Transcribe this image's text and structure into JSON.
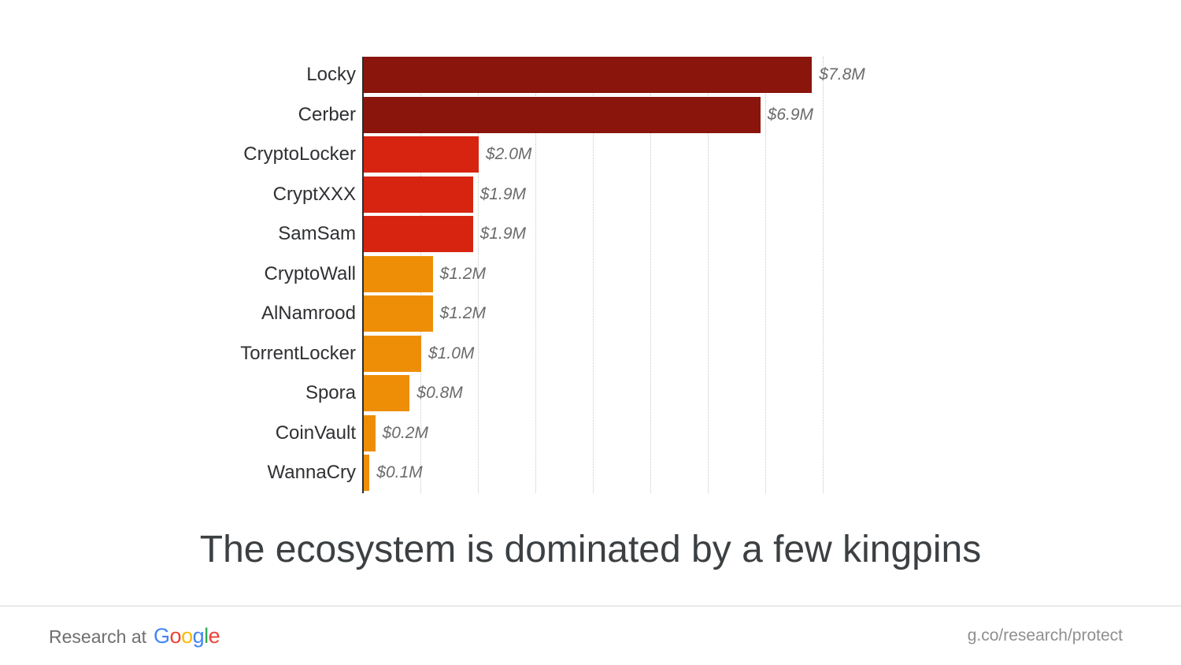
{
  "title": {
    "text": "The ecosystem is dominated by a few kingpins"
  },
  "chart_data": {
    "type": "bar",
    "orientation": "horizontal",
    "title": "The ecosystem is dominated by a few kingpins",
    "unit": "USD millions (ransomware revenue)",
    "xlim": [
      0,
      8
    ],
    "gridlines": {
      "interval": 1,
      "count": 8,
      "style": "dotted"
    },
    "categories": [
      "Locky",
      "Cerber",
      "CryptoLocker",
      "CryptXXX",
      "SamSam",
      "CryptoWall",
      "AlNamrood",
      "TorrentLocker",
      "Spora",
      "CoinVault",
      "WannaCry"
    ],
    "values": [
      7.8,
      6.9,
      2.0,
      1.9,
      1.9,
      1.2,
      1.2,
      1.0,
      0.8,
      0.2,
      0.1
    ],
    "bars": [
      {
        "label": "Locky",
        "value": 7.8,
        "value_label": "$7.8M",
        "color": "#8a150d"
      },
      {
        "label": "Cerber",
        "value": 6.9,
        "value_label": "$6.9M",
        "color": "#8a150d"
      },
      {
        "label": "CryptoLocker",
        "value": 2.0,
        "value_label": "$2.0M",
        "color": "#d62411"
      },
      {
        "label": "CryptXXX",
        "value": 1.9,
        "value_label": "$1.9M",
        "color": "#d62411"
      },
      {
        "label": "SamSam",
        "value": 1.9,
        "value_label": "$1.9M",
        "color": "#d62411"
      },
      {
        "label": "CryptoWall",
        "value": 1.2,
        "value_label": "$1.2M",
        "color": "#ee8e06"
      },
      {
        "label": "AlNamrood",
        "value": 1.2,
        "value_label": "$1.2M",
        "color": "#ee8e06"
      },
      {
        "label": "TorrentLocker",
        "value": 1.0,
        "value_label": "$1.0M",
        "color": "#ee8e06"
      },
      {
        "label": "Spora",
        "value": 0.8,
        "value_label": "$0.8M",
        "color": "#ee8e06"
      },
      {
        "label": "CoinVault",
        "value": 0.2,
        "value_label": "$0.2M",
        "color": "#ee8e06"
      },
      {
        "label": "WannaCry",
        "value": 0.1,
        "value_label": "$0.1M",
        "color": "#ee8e06"
      }
    ]
  },
  "footer": {
    "brand_prefix": "Research at",
    "brand_name": "Google",
    "brand_letters": [
      {
        "char": "G",
        "color": "#4285F4"
      },
      {
        "char": "o",
        "color": "#EA4335"
      },
      {
        "char": "o",
        "color": "#FBBC05"
      },
      {
        "char": "g",
        "color": "#4285F4"
      },
      {
        "char": "l",
        "color": "#34A853"
      },
      {
        "char": "e",
        "color": "#EA4335"
      }
    ],
    "link": "g.co/research/protect"
  },
  "theme": {
    "axis_color": "#2b2b2b",
    "gridline_color": "#c6c6c6",
    "label_color": "#2f3033",
    "value_color": "#6b6b6b",
    "title_color": "#3c4043",
    "divider_color": "#e9e9e9",
    "dark_red": "#8a150d",
    "red": "#d62411",
    "orange": "#ee8e06"
  }
}
